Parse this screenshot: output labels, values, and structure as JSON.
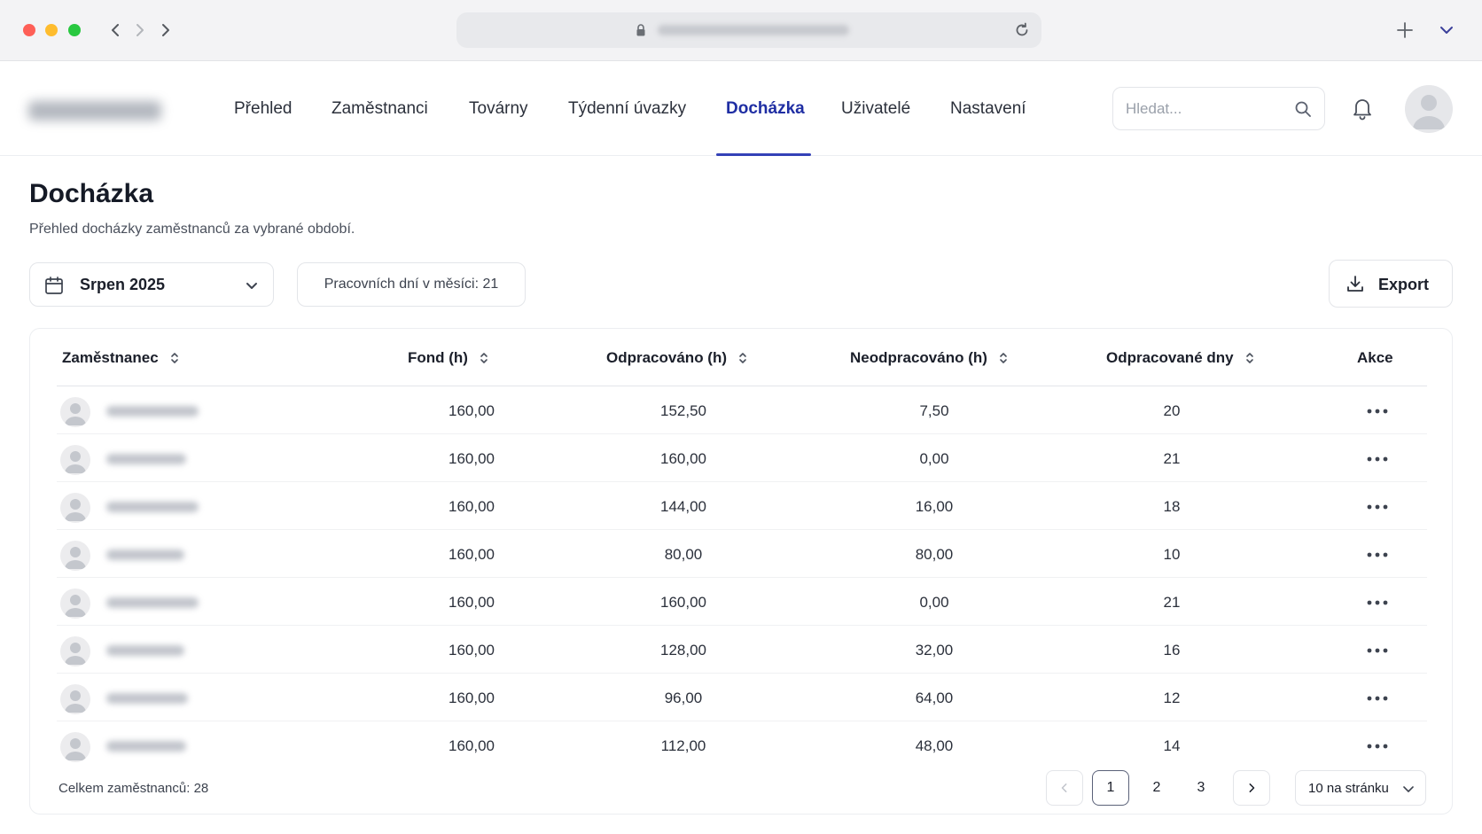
{
  "browser": {
    "back_icon": "chevron-left-icon",
    "forward_icons": [
      "chevron-right-icon",
      "chevron-right-icon"
    ],
    "lock_icon": "lock-icon",
    "reload_icon": "reload-icon",
    "new_tab_icon": "plus-icon",
    "tab_menu_icon": "chevron-down-icon"
  },
  "header": {
    "nav": [
      {
        "label": "Přehled",
        "active": false
      },
      {
        "label": "Zaměstnanci",
        "active": false
      },
      {
        "label": "Továrny",
        "active": false
      },
      {
        "label": "Týdenní úvazky",
        "active": false
      },
      {
        "label": "Docházka",
        "active": true
      },
      {
        "label": "Uživatelé",
        "active": false
      },
      {
        "label": "Nastavení",
        "active": false
      }
    ],
    "search_placeholder": "Hledat...",
    "accent_color": "#1f2ea3"
  },
  "page": {
    "title": "Docházka",
    "subtitle": "Přehled docházky zaměstnanců za vybrané období."
  },
  "toolbar": {
    "month": "Srpen 2025",
    "workdays": "Pracovních dní v měsíci: 21",
    "export_label": "Export"
  },
  "table": {
    "columns": [
      "Zaměstnanec",
      "Fond (h)",
      "Odpracováno (h)",
      "Neodpracováno (h)",
      "Odpracované dny",
      "Akce"
    ],
    "rows": [
      {
        "fond": "160,00",
        "worked": "152,50",
        "not_worked": "7,50",
        "days": "20"
      },
      {
        "fond": "160,00",
        "worked": "160,00",
        "not_worked": "0,00",
        "days": "21"
      },
      {
        "fond": "160,00",
        "worked": "144,00",
        "not_worked": "16,00",
        "days": "18"
      },
      {
        "fond": "160,00",
        "worked": "80,00",
        "not_worked": "80,00",
        "days": "10"
      },
      {
        "fond": "160,00",
        "worked": "160,00",
        "not_worked": "0,00",
        "days": "21"
      },
      {
        "fond": "160,00",
        "worked": "128,00",
        "not_worked": "32,00",
        "days": "16"
      },
      {
        "fond": "160,00",
        "worked": "96,00",
        "not_worked": "64,00",
        "days": "12"
      },
      {
        "fond": "160,00",
        "worked": "112,00",
        "not_worked": "48,00",
        "days": "14"
      }
    ]
  },
  "footer": {
    "total": "Celkem zaměstnanců: 28",
    "pages": [
      "1",
      "2",
      "3"
    ],
    "current_page": "1",
    "per_page": "10 na stránku"
  }
}
